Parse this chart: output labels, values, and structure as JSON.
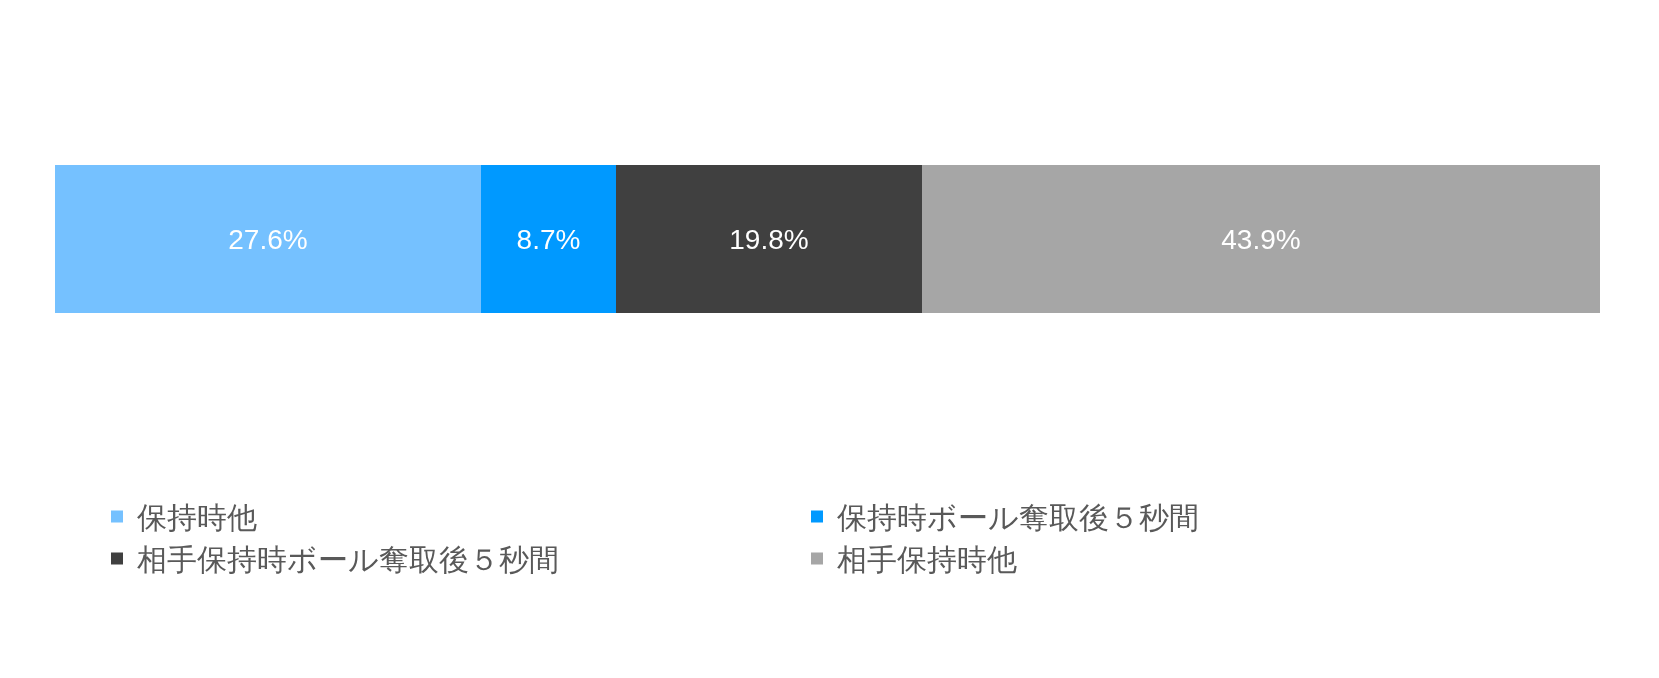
{
  "chart_data": {
    "type": "bar",
    "orientation": "horizontal",
    "stacked": true,
    "categories": [
      null
    ],
    "xlim": [
      0,
      100
    ],
    "tick_labels": false,
    "legend": "bottom",
    "series": [
      {
        "name": "保持時他",
        "color": "#75c1ff",
        "values": [
          27.6
        ],
        "value_labels": [
          "27.6%"
        ]
      },
      {
        "name": "保持時ボール奪取後５秒間",
        "color": "#0099ff",
        "values": [
          8.7
        ],
        "value_labels": [
          "8.7%"
        ]
      },
      {
        "name": "相手保持時ボール奪取後５秒間",
        "color": "#404040",
        "values": [
          19.8
        ],
        "value_labels": [
          "19.8%"
        ]
      },
      {
        "name": "相手保持時他",
        "color": "#a6a6a6",
        "values": [
          43.9
        ],
        "value_labels": [
          "43.9%"
        ]
      }
    ]
  }
}
